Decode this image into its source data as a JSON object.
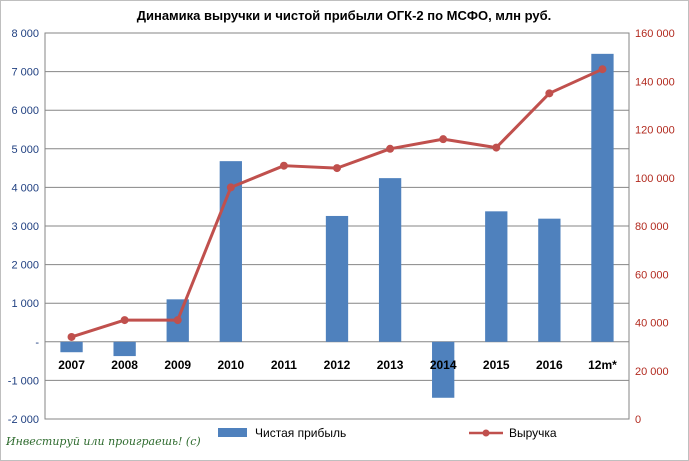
{
  "chart_data": {
    "type": "bar+line",
    "title": "Динамика выручки и чистой прибыли ОГК-2 по МСФО, млн руб.",
    "categories": [
      "2007",
      "2008",
      "2009",
      "2010",
      "2011",
      "2012",
      "2013",
      "2014",
      "2015",
      "2016",
      "12m*"
    ],
    "series": [
      {
        "name": "Чистая прибыль",
        "type": "bar",
        "axis": "left",
        "color": "#4f81bd",
        "values": [
          -270,
          -370,
          1100,
          4680,
          0,
          3260,
          4240,
          -1450,
          3380,
          3190,
          7460
        ]
      },
      {
        "name": "Выручка",
        "type": "line",
        "axis": "right",
        "color": "#c0504d",
        "values": [
          34000,
          41000,
          41000,
          96000,
          105000,
          104000,
          112000,
          116000,
          112500,
          135000,
          145000
        ]
      }
    ],
    "left_axis": {
      "ylim": [
        -2000,
        8000
      ],
      "ticks": [
        -2000,
        -1000,
        0,
        1000,
        2000,
        3000,
        4000,
        5000,
        6000,
        7000,
        8000
      ],
      "tick_labels": [
        "-2 000",
        "-1 000",
        "-",
        "1 000",
        "2 000",
        "3 000",
        "4 000",
        "5 000",
        "6 000",
        "7 000",
        "8 000"
      ],
      "color": "#1f3f80"
    },
    "right_axis": {
      "ylim": [
        0,
        160000
      ],
      "ticks": [
        0,
        20000,
        40000,
        60000,
        80000,
        100000,
        120000,
        140000,
        160000
      ],
      "tick_labels": [
        "0",
        "20 000",
        "40 000",
        "60 000",
        "80 000",
        "100 000",
        "120 000",
        "140 000",
        "160 000"
      ],
      "color": "#b22a1f"
    },
    "grid": true,
    "legend": "bottom"
  },
  "watermark": "Инвестируй или проиграешь! (c)"
}
